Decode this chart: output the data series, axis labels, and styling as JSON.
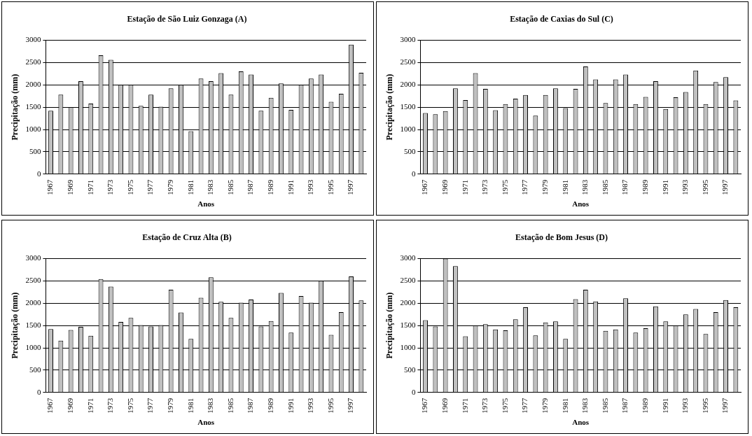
{
  "chart_data": [
    {
      "type": "bar",
      "title": "Estação de São Luiz Gonzaga (A)",
      "xlabel": "Anos",
      "ylabel": "Precipitação (mm)",
      "categories": [
        "1967",
        null,
        "1969",
        null,
        "1971",
        null,
        "1973",
        null,
        "1975",
        null,
        "1977",
        null,
        "1979",
        null,
        "1981",
        null,
        "1983",
        null,
        "1985",
        null,
        "1987",
        null,
        "1989",
        null,
        "1991",
        null,
        "1993",
        null,
        "1995",
        null,
        "1997",
        null
      ],
      "series": [
        {
          "color": "#c0c0c0",
          "values": [
            1420,
            1780,
            1500,
            2080,
            1580,
            2660,
            2560,
            2000,
            2000,
            1530,
            1780,
            1510,
            1920,
            2000,
            960,
            2140,
            2080,
            2260,
            1780,
            2300,
            2230,
            1420,
            1710,
            2030,
            1440,
            2000,
            2140,
            2230,
            1620,
            1800,
            2900,
            2270
          ]
        }
      ],
      "ylim": [
        0,
        3000
      ],
      "yticks": [
        0,
        500,
        1000,
        1500,
        2000,
        2500,
        3000
      ],
      "grid": "y",
      "legend": false
    },
    {
      "type": "bar",
      "title": "Estação de Caxias do Sul (C)",
      "xlabel": "Anos",
      "ylabel": "Precipitação (mm)",
      "categories": [
        "1967",
        null,
        "1969",
        null,
        "1971",
        null,
        "1973",
        null,
        "1975",
        null,
        "1977",
        null,
        "1979",
        null,
        "1981",
        null,
        "1983",
        null,
        "1985",
        null,
        "1987",
        null,
        "1989",
        null,
        "1991",
        null,
        "1993",
        null,
        "1995",
        null,
        "1997",
        null
      ],
      "series": [
        {
          "color": "#c0c0c0",
          "values": [
            1370,
            1340,
            1410,
            1920,
            1660,
            2260,
            1910,
            1430,
            1570,
            1690,
            1770,
            1310,
            1770,
            1920,
            1480,
            1910,
            2410,
            2120,
            1590,
            2120,
            2230,
            1570,
            1730,
            2080,
            1460,
            1720,
            1840,
            2320,
            1570,
            2060,
            2170,
            1650
          ]
        }
      ],
      "ylim": [
        0,
        3000
      ],
      "yticks": [
        0,
        500,
        1000,
        1500,
        2000,
        2500,
        3000
      ],
      "grid": "y",
      "legend": false
    },
    {
      "type": "bar",
      "title": "Estação de Cruz Alta (B)",
      "xlabel": "Anos",
      "ylabel": "Precipitação (mm)",
      "categories": [
        "1967",
        null,
        "1969",
        null,
        "1971",
        null,
        "1973",
        null,
        "1975",
        null,
        "1977",
        null,
        "1979",
        null,
        "1981",
        null,
        "1983",
        null,
        "1985",
        null,
        "1987",
        null,
        "1989",
        null,
        "1991",
        null,
        "1993",
        null,
        "1995",
        null,
        "1997",
        null
      ],
      "series": [
        {
          "color": "#c0c0c0",
          "values": [
            1420,
            1160,
            1400,
            1470,
            1270,
            2540,
            2370,
            1580,
            1670,
            1510,
            1480,
            1510,
            2300,
            1790,
            1200,
            2120,
            2580,
            2030,
            1670,
            2010,
            2080,
            1480,
            1600,
            2230,
            1340,
            2160,
            2010,
            2500,
            1290,
            1800,
            2600,
            2060
          ]
        }
      ],
      "ylim": [
        0,
        3000
      ],
      "yticks": [
        0,
        500,
        1000,
        1500,
        2000,
        2500,
        3000
      ],
      "grid": "y",
      "legend": false
    },
    {
      "type": "bar",
      "title": "Estação de Bom Jesus (D)",
      "xlabel": "Anos",
      "ylabel": "Precipitação (mm)",
      "categories": [
        "1967",
        null,
        "1969",
        null,
        "1971",
        null,
        "1973",
        null,
        "1975",
        null,
        "1977",
        null,
        "1979",
        null,
        "1981",
        null,
        "1983",
        null,
        "1985",
        null,
        "1987",
        null,
        "1989",
        null,
        "1991",
        null,
        "1993",
        null,
        "1995",
        null,
        "1997",
        null
      ],
      "series": [
        {
          "color": "#c0c0c0",
          "values": [
            1620,
            1480,
            3000,
            2830,
            1260,
            1500,
            1530,
            1410,
            1390,
            1640,
            1910,
            1280,
            1570,
            1590,
            1200,
            2090,
            2300,
            2040,
            1380,
            1410,
            2110,
            1340,
            1440,
            1930,
            1590,
            1500,
            1750,
            1870,
            1310,
            1800,
            2070,
            1910
          ]
        }
      ],
      "ylim": [
        0,
        3000
      ],
      "yticks": [
        0,
        500,
        1000,
        1500,
        2000,
        2500,
        3000
      ],
      "grid": "y",
      "legend": false
    }
  ]
}
